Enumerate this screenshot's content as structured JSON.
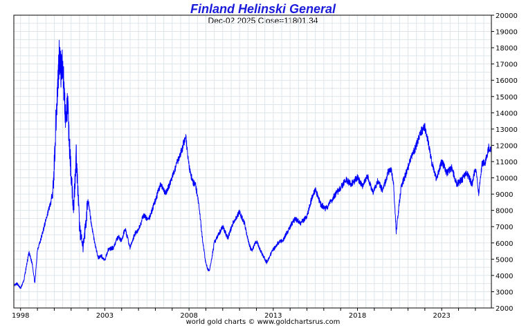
{
  "header": {
    "title": "Finland Helinski General",
    "subtitle": "Dec-02  2025   Close=11801.34"
  },
  "footer": {
    "credit": "world gold charts © www.goldchartsrus.com"
  },
  "colors": {
    "title": "#1a1adb",
    "series": "#0000ff",
    "grid": "#dde5ea",
    "frame": "#000000",
    "background": "#ffffff"
  },
  "chart_data": {
    "type": "line",
    "title": "Finland Helinski General",
    "subtitle": "Dec-02  2025   Close=11801.34",
    "xlabel": "",
    "ylabel": "",
    "xlim": [
      1997.6,
      2025.95
    ],
    "ylim": [
      2000,
      20000
    ],
    "y_axis_side": "right",
    "grid": true,
    "y_ticks": [
      2000,
      3000,
      4000,
      5000,
      6000,
      7000,
      8000,
      9000,
      10000,
      11000,
      12000,
      13000,
      14000,
      15000,
      16000,
      17000,
      18000,
      19000,
      20000
    ],
    "x_tick_labels": [
      "1998",
      "2003",
      "2008",
      "2013",
      "2018",
      "2023"
    ],
    "x_tick_values": [
      1998,
      2003,
      2008,
      2013,
      2018,
      2023
    ],
    "series": [
      {
        "x": [
          1997.6,
          1997.8,
          1998.0,
          1998.2,
          1998.35,
          1998.5,
          1998.7,
          1998.85,
          1999.0,
          1999.2,
          1999.4,
          1999.6,
          1999.8,
          1999.95,
          2000.1,
          2000.2,
          2000.3,
          2000.4,
          2000.5,
          2000.6,
          2000.7,
          2000.8,
          2000.9,
          2001.0,
          2001.15,
          2001.3,
          2001.5,
          2001.7,
          2001.9,
          2002.0,
          2002.2,
          2002.4,
          2002.6,
          2002.8,
          2003.0,
          2003.2,
          2003.5,
          2003.8,
          2004.0,
          2004.2,
          2004.5,
          2004.8,
          2005.0,
          2005.3,
          2005.6,
          2006.0,
          2006.3,
          2006.6,
          2007.0,
          2007.3,
          2007.6,
          2007.8,
          2008.0,
          2008.2,
          2008.4,
          2008.6,
          2008.8,
          2009.0,
          2009.2,
          2009.5,
          2009.8,
          2010.0,
          2010.3,
          2010.6,
          2011.0,
          2011.3,
          2011.5,
          2011.7,
          2012.0,
          2012.3,
          2012.6,
          2013.0,
          2013.3,
          2013.6,
          2014.0,
          2014.3,
          2014.6,
          2015.0,
          2015.3,
          2015.5,
          2015.8,
          2016.1,
          2016.4,
          2016.7,
          2017.0,
          2017.3,
          2017.6,
          2018.0,
          2018.3,
          2018.6,
          2018.9,
          2019.2,
          2019.5,
          2019.8,
          2020.0,
          2020.15,
          2020.3,
          2020.6,
          2020.9,
          2021.2,
          2021.5,
          2021.8,
          2022.0,
          2022.2,
          2022.4,
          2022.7,
          2023.0,
          2023.3,
          2023.6,
          2023.9,
          2024.2,
          2024.5,
          2024.8,
          2025.0,
          2025.2,
          2025.4,
          2025.6,
          2025.8,
          2025.92
        ],
        "y": [
          3350,
          3500,
          3200,
          3700,
          4600,
          5400,
          4700,
          3500,
          5600,
          6200,
          7000,
          7800,
          8500,
          9500,
          13500,
          15500,
          17800,
          16500,
          17200,
          15000,
          13500,
          14500,
          12000,
          10200,
          8100,
          11500,
          7000,
          5600,
          7500,
          8700,
          7200,
          6000,
          5100,
          5200,
          4900,
          5600,
          5700,
          6400,
          6100,
          6900,
          5700,
          6600,
          6800,
          7700,
          7400,
          8600,
          9600,
          9000,
          10000,
          11000,
          11800,
          12600,
          10700,
          9800,
          9500,
          8200,
          6200,
          4700,
          4200,
          6000,
          6600,
          7000,
          6300,
          7200,
          7900,
          7200,
          6200,
          5500,
          6100,
          5400,
          4800,
          5600,
          6000,
          6200,
          7000,
          7500,
          7200,
          7600,
          8800,
          9300,
          8400,
          8100,
          8500,
          9000,
          9400,
          9900,
          9600,
          10000,
          9500,
          10100,
          9100,
          9800,
          9200,
          10300,
          10600,
          9500,
          6700,
          9500,
          10300,
          11300,
          12000,
          12900,
          13100,
          12200,
          11000,
          9900,
          11000,
          10300,
          10600,
          9600,
          9900,
          10300,
          9600,
          10600,
          9100,
          10900,
          11000,
          11900,
          11800
        ]
      }
    ]
  }
}
